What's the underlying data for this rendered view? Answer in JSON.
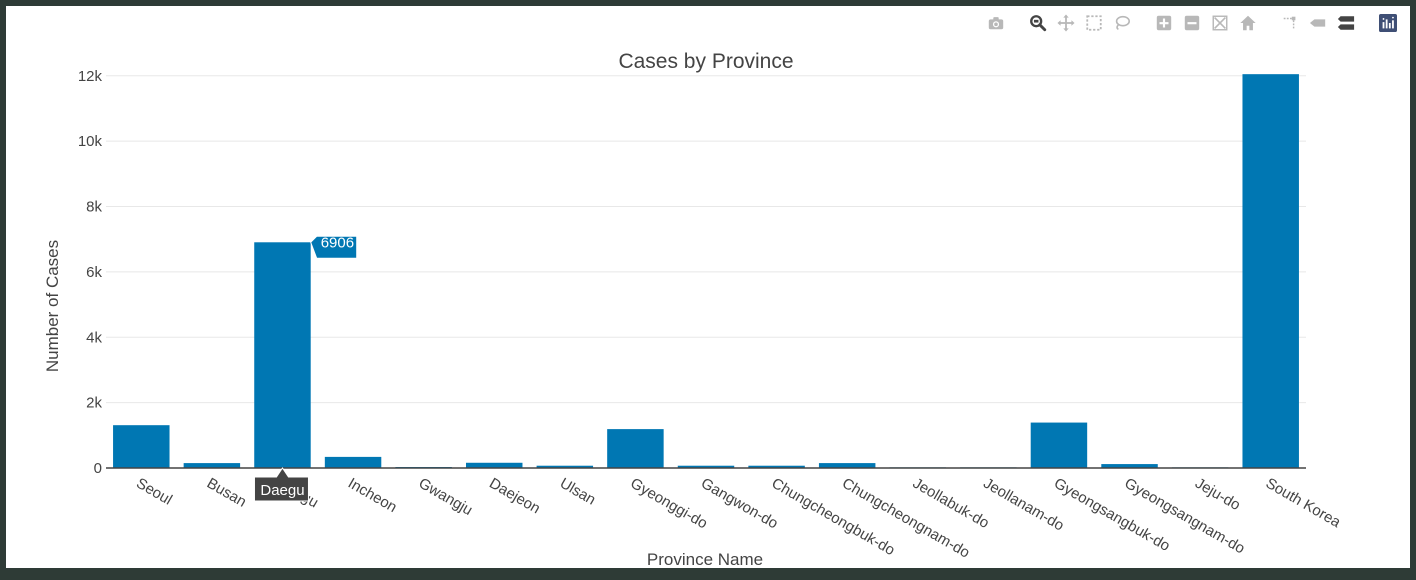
{
  "chart_data": {
    "type": "bar",
    "title": "Cases by Province",
    "xlabel": "Province Name",
    "ylabel": "Number of Cases",
    "categories": [
      "Seoul",
      "Busan",
      "Daegu",
      "Incheon",
      "Gwangju",
      "Daejeon",
      "Ulsan",
      "Gyeonggi-do",
      "Gangwon-do",
      "Chungcheongbuk-do",
      "Chungcheongnam-do",
      "Jeollabuk-do",
      "Jeollanam-do",
      "Gyeongsangbuk-do",
      "Gyeongsangnam-do",
      "Jeju-do",
      "South Korea"
    ],
    "values": [
      1310,
      150,
      6906,
      340,
      30,
      160,
      70,
      1190,
      70,
      70,
      150,
      20,
      20,
      1390,
      120,
      20,
      12050
    ],
    "ylim": [
      0,
      12300
    ],
    "yticks": [
      0,
      2000,
      4000,
      6000,
      8000,
      10000,
      12000
    ],
    "ytick_labels": [
      "0",
      "2k",
      "4k",
      "6k",
      "8k",
      "10k",
      "12k"
    ],
    "bar_color": "#0077b3",
    "grid": true,
    "hover": {
      "category": "Daegu",
      "value": "6906"
    }
  },
  "modebar": {
    "icons": [
      "camera-icon",
      "zoom-icon",
      "pan-icon",
      "box-select-icon",
      "lasso-select-icon",
      "zoom-in-icon",
      "zoom-out-icon",
      "autoscale-icon",
      "reset-axes-icon",
      "spike-lines-icon",
      "hover-closest-icon",
      "hover-compare-icon",
      "plotly-logo-icon"
    ],
    "active_color": "#444444",
    "inactive_color": "#b8b8b8",
    "logo_color": "#3f4f75"
  }
}
